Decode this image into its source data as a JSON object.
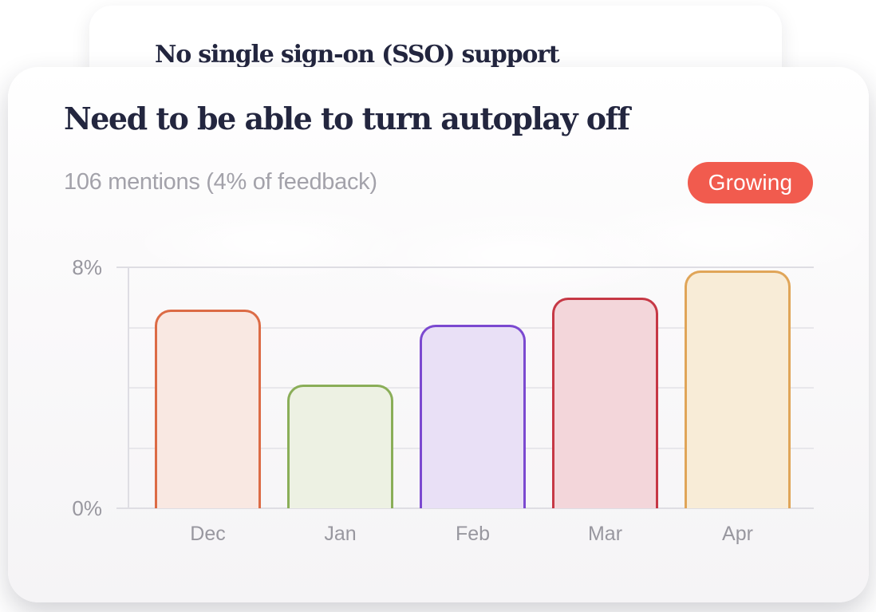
{
  "background_card": {
    "title": "No single sign-on (SSO) support"
  },
  "card": {
    "title": "Need to be able to turn autoplay off",
    "subtitle": "106 mentions (4% of feedback)",
    "badge": {
      "label": "Growing",
      "background_color": "#f15b4e",
      "text_color": "#ffffff"
    }
  },
  "chart_data": {
    "type": "bar",
    "categories": [
      "Dec",
      "Jan",
      "Feb",
      "Mar",
      "Apr"
    ],
    "values": [
      6.6,
      4.1,
      6.1,
      7.0,
      7.9
    ],
    "unit": "%",
    "xlabel": "",
    "ylabel": "",
    "ylim": [
      0,
      8
    ],
    "ytick_labels": [
      "8%",
      "0%"
    ],
    "gridline_values": [
      8,
      6,
      4,
      2,
      0
    ],
    "grid": true,
    "legend": false,
    "bar_styles": [
      {
        "category": "Dec",
        "border": "#dc6b45",
        "fill": "#f9e8e2"
      },
      {
        "category": "Jan",
        "border": "#8aae58",
        "fill": "#edf1e3"
      },
      {
        "category": "Feb",
        "border": "#7b49d0",
        "fill": "#e9e0f6"
      },
      {
        "category": "Mar",
        "border": "#c63845",
        "fill": "#f3d6da"
      },
      {
        "category": "Apr",
        "border": "#e0a558",
        "fill": "#f8ecd7"
      }
    ]
  }
}
